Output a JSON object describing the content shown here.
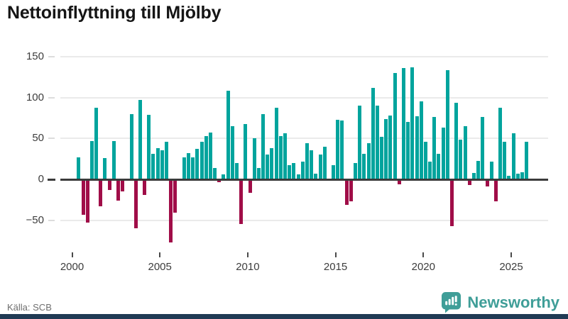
{
  "title": "Nettoinflyttning till Mjölby",
  "source": "Källa: SCB",
  "brand": {
    "name": "Newsworthy",
    "text_color": "#3f9e98",
    "icon_color": "#3f9e98",
    "bottom_bar_color": "#203a54",
    "icon": "speech-bubble-bar-chart"
  },
  "chart_data": {
    "type": "bar",
    "title": "Nettoinflyttning till Mjölby",
    "xlabel": "",
    "ylabel": "",
    "frequency": "quarterly",
    "series_start": {
      "year": 2000,
      "quarter": 2
    },
    "values": [
      27,
      -43,
      -53,
      47,
      88,
      -33,
      26,
      -13,
      47,
      -26,
      -15,
      0,
      80,
      -60,
      97,
      -19,
      79,
      31,
      38,
      36,
      46,
      -77,
      -41,
      0,
      27,
      32,
      27,
      37,
      46,
      53,
      57,
      14,
      -3,
      6,
      108,
      65,
      20,
      -55,
      68,
      -16,
      50,
      14,
      80,
      30,
      38,
      88,
      53,
      56,
      17,
      20,
      6,
      22,
      44,
      36,
      7,
      30,
      40,
      0,
      17,
      73,
      72,
      -31,
      -27,
      20,
      90,
      31,
      44,
      112,
      90,
      52,
      74,
      78,
      130,
      -6,
      136,
      70,
      137,
      77,
      95,
      46,
      22,
      76,
      31,
      63,
      134,
      -57,
      94,
      49,
      65,
      -7,
      8,
      23,
      76,
      -9,
      22,
      -27,
      88,
      46,
      4,
      56,
      7,
      9,
      46
    ],
    "x_tick_years": [
      2000,
      2005,
      2010,
      2015,
      2020,
      2025
    ],
    "x_tick_labels": [
      "2000",
      "2005",
      "2010",
      "2015",
      "2020",
      "2025"
    ],
    "y_ticks": [
      150,
      100,
      50,
      0,
      -50
    ],
    "y_tick_labels": [
      "150",
      "100",
      "50",
      "0",
      "−50"
    ],
    "ylim": [
      -80,
      159
    ],
    "grid": true,
    "legend": "none",
    "bar_colors": {
      "positive": "#00a49d",
      "negative": "#a00d48"
    }
  }
}
